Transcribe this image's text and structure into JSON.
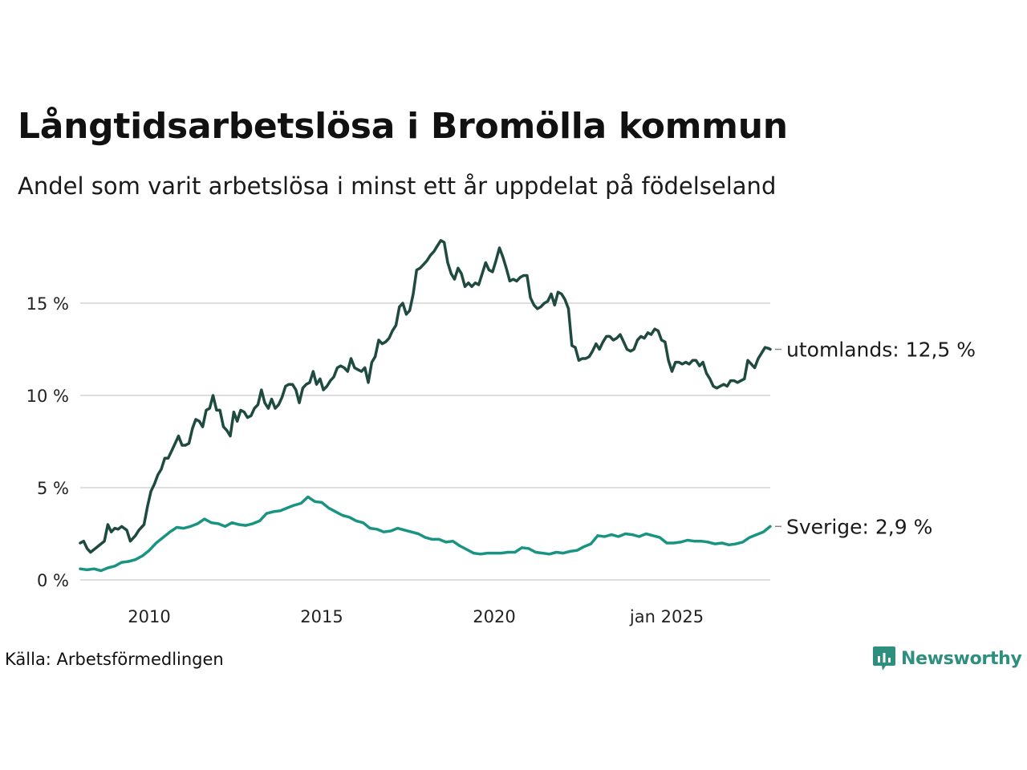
{
  "title": "Långtidsarbetslösa i Bromölla kommun",
  "subtitle": "Andel som varit arbetslösa i minst ett år uppdelat på födelseland",
  "source": "Källa: Arbetsförmedlingen",
  "brand": {
    "name": "Newsworthy",
    "icon": "newsworthy-logo-icon",
    "color": "#2f8f7f"
  },
  "chart_data": {
    "type": "line",
    "ylim": [
      0,
      18.5
    ],
    "y_ticks": [
      {
        "value": 0,
        "label": "0 %"
      },
      {
        "value": 5,
        "label": "5 %"
      },
      {
        "value": 10,
        "label": "10 %"
      },
      {
        "value": 15,
        "label": "15 %"
      }
    ],
    "x_ticks": [
      {
        "value": 2010.0,
        "label": "2010"
      },
      {
        "value": 2015.0,
        "label": "2015"
      },
      {
        "value": 2020.0,
        "label": "2020"
      },
      {
        "value": 2025.0,
        "label": "jan 2025"
      }
    ],
    "grid": true,
    "series": [
      {
        "name": "utomlands",
        "end_label": "utomlands: 12,5 %",
        "color": "#1e4a40",
        "points": [
          [
            2008.0,
            2.0
          ],
          [
            2008.1,
            2.1
          ],
          [
            2008.2,
            1.7
          ],
          [
            2008.3,
            1.5
          ],
          [
            2008.5,
            1.8
          ],
          [
            2008.7,
            2.1
          ],
          [
            2008.8,
            3.0
          ],
          [
            2008.9,
            2.6
          ],
          [
            2009.0,
            2.8
          ],
          [
            2009.1,
            2.75
          ],
          [
            2009.2,
            2.9
          ],
          [
            2009.35,
            2.7
          ],
          [
            2009.45,
            2.1
          ],
          [
            2009.6,
            2.4
          ],
          [
            2009.7,
            2.7
          ],
          [
            2009.85,
            3.0
          ],
          [
            2009.95,
            4.0
          ],
          [
            2010.05,
            4.8
          ],
          [
            2010.15,
            5.2
          ],
          [
            2010.25,
            5.7
          ],
          [
            2010.35,
            6.0
          ],
          [
            2010.45,
            6.6
          ],
          [
            2010.55,
            6.6
          ],
          [
            2010.65,
            7.0
          ],
          [
            2010.75,
            7.4
          ],
          [
            2010.85,
            7.8
          ],
          [
            2010.95,
            7.3
          ],
          [
            2011.05,
            7.3
          ],
          [
            2011.15,
            7.4
          ],
          [
            2011.25,
            8.2
          ],
          [
            2011.35,
            8.7
          ],
          [
            2011.45,
            8.6
          ],
          [
            2011.55,
            8.3
          ],
          [
            2011.65,
            9.2
          ],
          [
            2011.75,
            9.3
          ],
          [
            2011.85,
            10.0
          ],
          [
            2011.95,
            9.2
          ],
          [
            2012.05,
            9.2
          ],
          [
            2012.15,
            8.3
          ],
          [
            2012.25,
            8.1
          ],
          [
            2012.35,
            7.8
          ],
          [
            2012.45,
            9.1
          ],
          [
            2012.55,
            8.6
          ],
          [
            2012.65,
            9.2
          ],
          [
            2012.75,
            9.1
          ],
          [
            2012.85,
            8.8
          ],
          [
            2012.95,
            8.9
          ],
          [
            2013.05,
            9.3
          ],
          [
            2013.15,
            9.5
          ],
          [
            2013.25,
            10.3
          ],
          [
            2013.35,
            9.6
          ],
          [
            2013.45,
            9.3
          ],
          [
            2013.55,
            9.8
          ],
          [
            2013.65,
            9.3
          ],
          [
            2013.75,
            9.5
          ],
          [
            2013.85,
            9.9
          ],
          [
            2013.95,
            10.5
          ],
          [
            2014.05,
            10.6
          ],
          [
            2014.15,
            10.6
          ],
          [
            2014.25,
            10.3
          ],
          [
            2014.35,
            9.6
          ],
          [
            2014.45,
            10.4
          ],
          [
            2014.55,
            10.6
          ],
          [
            2014.65,
            10.7
          ],
          [
            2014.75,
            11.3
          ],
          [
            2014.85,
            10.6
          ],
          [
            2014.95,
            10.9
          ],
          [
            2015.05,
            10.3
          ],
          [
            2015.15,
            10.5
          ],
          [
            2015.25,
            10.8
          ],
          [
            2015.35,
            11.0
          ],
          [
            2015.45,
            11.5
          ],
          [
            2015.55,
            11.6
          ],
          [
            2015.65,
            11.5
          ],
          [
            2015.75,
            11.3
          ],
          [
            2015.85,
            12.0
          ],
          [
            2015.95,
            11.5
          ],
          [
            2016.05,
            11.4
          ],
          [
            2016.15,
            11.3
          ],
          [
            2016.25,
            11.5
          ],
          [
            2016.35,
            10.7
          ],
          [
            2016.45,
            11.8
          ],
          [
            2016.55,
            12.1
          ],
          [
            2016.65,
            13.0
          ],
          [
            2016.75,
            12.8
          ],
          [
            2016.85,
            12.9
          ],
          [
            2016.95,
            13.1
          ],
          [
            2017.05,
            13.5
          ],
          [
            2017.15,
            13.8
          ],
          [
            2017.25,
            14.8
          ],
          [
            2017.35,
            15.0
          ],
          [
            2017.45,
            14.4
          ],
          [
            2017.55,
            14.6
          ],
          [
            2017.65,
            15.5
          ],
          [
            2017.75,
            16.8
          ],
          [
            2017.85,
            16.9
          ],
          [
            2017.95,
            17.1
          ],
          [
            2018.05,
            17.3
          ],
          [
            2018.15,
            17.6
          ],
          [
            2018.25,
            17.8
          ],
          [
            2018.35,
            18.1
          ],
          [
            2018.45,
            18.4
          ],
          [
            2018.55,
            18.3
          ],
          [
            2018.65,
            17.2
          ],
          [
            2018.75,
            16.6
          ],
          [
            2018.85,
            16.3
          ],
          [
            2018.95,
            16.9
          ],
          [
            2019.05,
            16.6
          ],
          [
            2019.15,
            15.9
          ],
          [
            2019.25,
            16.1
          ],
          [
            2019.35,
            15.9
          ],
          [
            2019.45,
            16.1
          ],
          [
            2019.55,
            16.0
          ],
          [
            2019.65,
            16.6
          ],
          [
            2019.75,
            17.2
          ],
          [
            2019.85,
            16.8
          ],
          [
            2019.95,
            16.7
          ],
          [
            2020.05,
            17.3
          ],
          [
            2020.15,
            18.0
          ],
          [
            2020.25,
            17.5
          ],
          [
            2020.35,
            16.9
          ],
          [
            2020.45,
            16.2
          ],
          [
            2020.55,
            16.3
          ],
          [
            2020.65,
            16.2
          ],
          [
            2020.75,
            16.4
          ],
          [
            2020.85,
            16.5
          ],
          [
            2020.95,
            16.5
          ],
          [
            2021.05,
            15.3
          ],
          [
            2021.15,
            14.9
          ],
          [
            2021.25,
            14.7
          ],
          [
            2021.35,
            14.8
          ],
          [
            2021.45,
            15.0
          ],
          [
            2021.55,
            15.1
          ],
          [
            2021.65,
            15.5
          ],
          [
            2021.75,
            14.9
          ],
          [
            2021.85,
            15.6
          ],
          [
            2021.95,
            15.5
          ],
          [
            2022.05,
            15.2
          ],
          [
            2022.15,
            14.7
          ],
          [
            2022.25,
            12.7
          ],
          [
            2022.35,
            12.6
          ],
          [
            2022.45,
            11.9
          ],
          [
            2022.55,
            12.0
          ],
          [
            2022.65,
            12.0
          ],
          [
            2022.75,
            12.1
          ],
          [
            2022.85,
            12.4
          ],
          [
            2022.95,
            12.8
          ],
          [
            2023.05,
            12.5
          ],
          [
            2023.15,
            12.9
          ],
          [
            2023.25,
            13.2
          ],
          [
            2023.35,
            13.2
          ],
          [
            2023.45,
            13.0
          ],
          [
            2023.55,
            13.1
          ],
          [
            2023.65,
            13.3
          ],
          [
            2023.75,
            12.9
          ],
          [
            2023.85,
            12.5
          ],
          [
            2023.95,
            12.4
          ],
          [
            2024.05,
            12.5
          ],
          [
            2024.15,
            13.0
          ],
          [
            2024.25,
            13.2
          ],
          [
            2024.35,
            13.1
          ],
          [
            2024.45,
            13.4
          ],
          [
            2024.55,
            13.3
          ],
          [
            2024.65,
            13.6
          ],
          [
            2024.75,
            13.5
          ],
          [
            2024.85,
            13.0
          ],
          [
            2024.95,
            12.9
          ],
          [
            2025.05,
            11.9
          ],
          [
            2025.15,
            11.3
          ],
          [
            2025.25,
            11.8
          ],
          [
            2025.35,
            11.8
          ],
          [
            2025.45,
            11.7
          ],
          [
            2025.55,
            11.8
          ],
          [
            2025.65,
            11.7
          ],
          [
            2025.75,
            11.9
          ],
          [
            2025.85,
            11.9
          ],
          [
            2025.95,
            11.6
          ],
          [
            2026.05,
            11.8
          ],
          [
            2026.15,
            11.2
          ],
          [
            2026.25,
            10.9
          ],
          [
            2026.35,
            10.5
          ],
          [
            2026.45,
            10.4
          ],
          [
            2026.55,
            10.5
          ],
          [
            2026.65,
            10.6
          ],
          [
            2026.75,
            10.5
          ],
          [
            2026.85,
            10.8
          ],
          [
            2026.95,
            10.8
          ],
          [
            2027.05,
            10.7
          ],
          [
            2027.15,
            10.8
          ],
          [
            2027.25,
            10.9
          ],
          [
            2027.35,
            11.9
          ],
          [
            2027.45,
            11.7
          ],
          [
            2027.55,
            11.5
          ],
          [
            2027.65,
            12.0
          ],
          [
            2027.75,
            12.3
          ],
          [
            2027.85,
            12.6
          ],
          [
            2027.95,
            12.55
          ],
          [
            2028.0,
            12.5
          ]
        ]
      },
      {
        "name": "Sverige",
        "end_label": "Sverige:  2,9 %",
        "color": "#1a9482",
        "points": [
          [
            2008.0,
            0.6
          ],
          [
            2008.2,
            0.55
          ],
          [
            2008.4,
            0.6
          ],
          [
            2008.6,
            0.5
          ],
          [
            2008.8,
            0.65
          ],
          [
            2009.0,
            0.75
          ],
          [
            2009.2,
            0.95
          ],
          [
            2009.4,
            1.0
          ],
          [
            2009.6,
            1.1
          ],
          [
            2009.8,
            1.3
          ],
          [
            2010.0,
            1.6
          ],
          [
            2010.2,
            2.0
          ],
          [
            2010.4,
            2.3
          ],
          [
            2010.6,
            2.6
          ],
          [
            2010.8,
            2.85
          ],
          [
            2011.0,
            2.8
          ],
          [
            2011.2,
            2.9
          ],
          [
            2011.4,
            3.05
          ],
          [
            2011.6,
            3.3
          ],
          [
            2011.8,
            3.1
          ],
          [
            2012.0,
            3.05
          ],
          [
            2012.2,
            2.9
          ],
          [
            2012.4,
            3.1
          ],
          [
            2012.6,
            3.0
          ],
          [
            2012.8,
            2.95
          ],
          [
            2013.0,
            3.05
          ],
          [
            2013.2,
            3.2
          ],
          [
            2013.4,
            3.6
          ],
          [
            2013.6,
            3.7
          ],
          [
            2013.8,
            3.75
          ],
          [
            2014.0,
            3.9
          ],
          [
            2014.2,
            4.05
          ],
          [
            2014.4,
            4.15
          ],
          [
            2014.6,
            4.5
          ],
          [
            2014.8,
            4.25
          ],
          [
            2015.0,
            4.2
          ],
          [
            2015.2,
            3.9
          ],
          [
            2015.4,
            3.7
          ],
          [
            2015.6,
            3.5
          ],
          [
            2015.8,
            3.4
          ],
          [
            2016.0,
            3.2
          ],
          [
            2016.2,
            3.1
          ],
          [
            2016.4,
            2.8
          ],
          [
            2016.6,
            2.75
          ],
          [
            2016.8,
            2.6
          ],
          [
            2017.0,
            2.65
          ],
          [
            2017.2,
            2.8
          ],
          [
            2017.4,
            2.7
          ],
          [
            2017.6,
            2.6
          ],
          [
            2017.8,
            2.5
          ],
          [
            2018.0,
            2.3
          ],
          [
            2018.2,
            2.2
          ],
          [
            2018.4,
            2.2
          ],
          [
            2018.6,
            2.05
          ],
          [
            2018.8,
            2.1
          ],
          [
            2019.0,
            1.85
          ],
          [
            2019.2,
            1.65
          ],
          [
            2019.4,
            1.45
          ],
          [
            2019.6,
            1.4
          ],
          [
            2019.8,
            1.45
          ],
          [
            2020.0,
            1.45
          ],
          [
            2020.2,
            1.45
          ],
          [
            2020.4,
            1.5
          ],
          [
            2020.6,
            1.5
          ],
          [
            2020.8,
            1.75
          ],
          [
            2021.0,
            1.7
          ],
          [
            2021.2,
            1.5
          ],
          [
            2021.4,
            1.45
          ],
          [
            2021.6,
            1.4
          ],
          [
            2021.8,
            1.5
          ],
          [
            2022.0,
            1.45
          ],
          [
            2022.2,
            1.55
          ],
          [
            2022.4,
            1.6
          ],
          [
            2022.6,
            1.8
          ],
          [
            2022.8,
            1.95
          ],
          [
            2023.0,
            2.4
          ],
          [
            2023.2,
            2.35
          ],
          [
            2023.4,
            2.45
          ],
          [
            2023.6,
            2.35
          ],
          [
            2023.8,
            2.5
          ],
          [
            2024.0,
            2.45
          ],
          [
            2024.2,
            2.35
          ],
          [
            2024.4,
            2.5
          ],
          [
            2024.6,
            2.4
          ],
          [
            2024.8,
            2.3
          ],
          [
            2025.0,
            2.0
          ],
          [
            2025.2,
            2.0
          ],
          [
            2025.4,
            2.05
          ],
          [
            2025.6,
            2.15
          ],
          [
            2025.8,
            2.1
          ],
          [
            2026.0,
            2.1
          ],
          [
            2026.2,
            2.05
          ],
          [
            2026.4,
            1.95
          ],
          [
            2026.6,
            2.0
          ],
          [
            2026.8,
            1.9
          ],
          [
            2027.0,
            1.95
          ],
          [
            2027.2,
            2.05
          ],
          [
            2027.4,
            2.3
          ],
          [
            2027.6,
            2.45
          ],
          [
            2027.8,
            2.6
          ],
          [
            2028.0,
            2.9
          ]
        ]
      }
    ]
  }
}
